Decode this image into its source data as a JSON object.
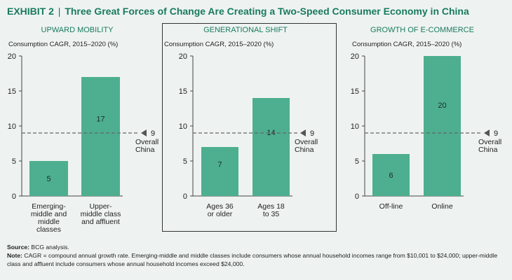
{
  "header": {
    "exhibit": "EXHIBIT 2",
    "separator": "|",
    "title": "Three Great Forces of Change Are Creating a Two-Speed Consumer Economy in China"
  },
  "footer": {
    "source_label": "Source:",
    "source_text": "BCG analysis.",
    "note_label": "Note:",
    "note_text": "CAGR = compound annual growth rate. Emerging-middle and middle classes include consumers whose annual household incomes range from $10,001 to $24,000; upper-middle class and affluent include consumers whose annual household incomes exceed $24,000."
  },
  "colors": {
    "bar": "#4daf8f",
    "title": "#197a5e",
    "panel_title": "#197a5e",
    "reference_line": "#666666",
    "background": "#eef3f1"
  },
  "chart_data": [
    {
      "type": "bar",
      "title": "UPWARD MOBILITY",
      "ylabel": "Consumption CAGR, 2015–2020 (%)",
      "ylim": [
        0,
        20
      ],
      "yticks": [
        0,
        5,
        10,
        15,
        20
      ],
      "categories": [
        [
          "Emerging-",
          "middle and",
          "middle",
          "classes"
        ],
        [
          "Upper-",
          "middle class",
          "and affluent"
        ]
      ],
      "values": [
        5,
        17
      ],
      "reference": {
        "value": 9,
        "label": "9",
        "caption": [
          "Overall",
          "China"
        ]
      },
      "highlighted": false
    },
    {
      "type": "bar",
      "title": "GENERATIONAL SHIFT",
      "ylabel": "Consumption CAGR, 2015–2020 (%)",
      "ylim": [
        0,
        20
      ],
      "yticks": [
        0,
        5,
        10,
        15,
        20
      ],
      "categories": [
        [
          "Ages 36",
          "or older"
        ],
        [
          "Ages 18",
          "to 35"
        ]
      ],
      "values": [
        7,
        14
      ],
      "reference": {
        "value": 9,
        "label": "9",
        "caption": [
          "Overall",
          "China"
        ]
      },
      "highlighted": true
    },
    {
      "type": "bar",
      "title": "GROWTH OF E-COMMERCE",
      "ylabel": "Consumption CAGR, 2015–2020 (%)",
      "ylim": [
        0,
        20
      ],
      "yticks": [
        0,
        5,
        10,
        15,
        20
      ],
      "categories": [
        [
          "Off-line"
        ],
        [
          "Online"
        ]
      ],
      "values": [
        6,
        20
      ],
      "reference": {
        "value": 9,
        "label": "9",
        "caption": [
          "Overall",
          "China"
        ]
      },
      "highlighted": false
    }
  ]
}
